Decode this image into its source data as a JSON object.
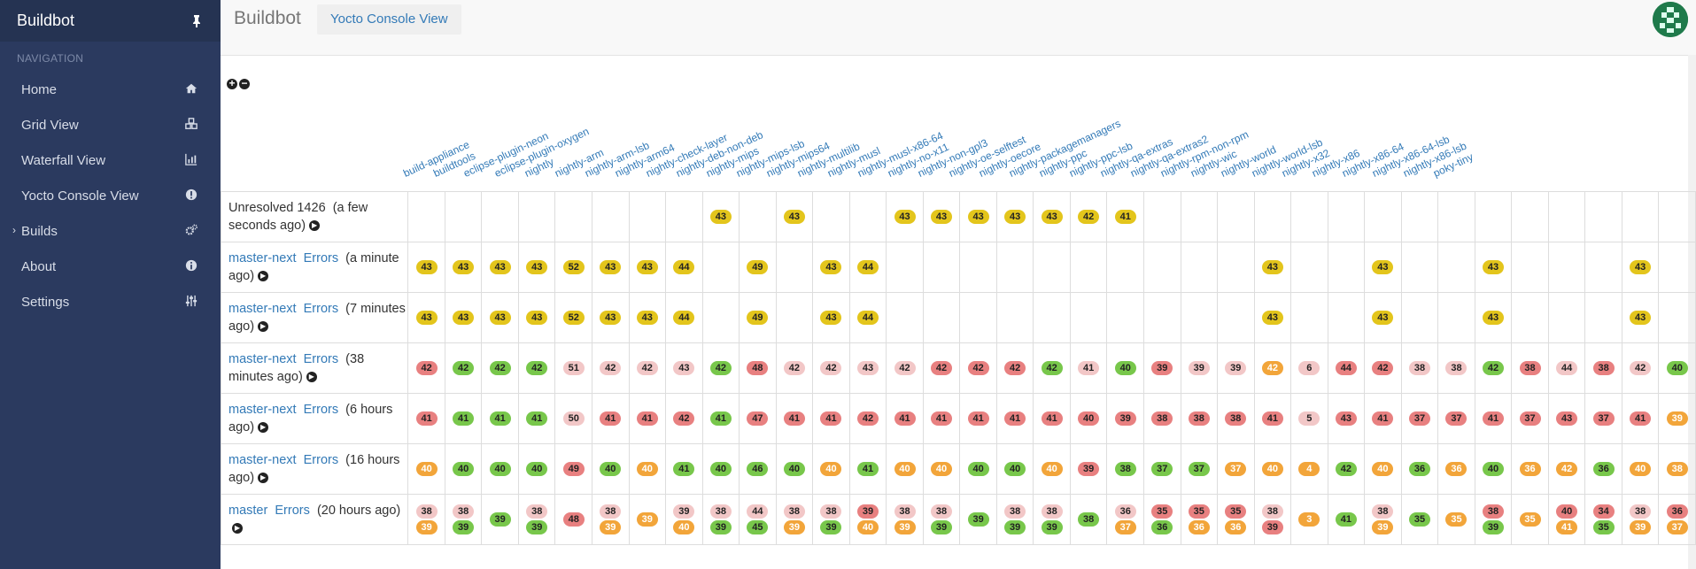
{
  "sidebar": {
    "brand": "Buildbot",
    "nav_header": "NAVIGATION",
    "items": [
      {
        "label": "Home",
        "icon": "home-icon"
      },
      {
        "label": "Grid View",
        "icon": "cubes-icon"
      },
      {
        "label": "Waterfall View",
        "icon": "bar-chart-icon"
      },
      {
        "label": "Yocto Console View",
        "icon": "exclamation-circle-icon"
      },
      {
        "label": "Builds",
        "icon": "cogs-icon",
        "expandable": true
      },
      {
        "label": "About",
        "icon": "info-circle-icon"
      },
      {
        "label": "Settings",
        "icon": "sliders-icon"
      }
    ]
  },
  "topbar": {
    "brand": "Buildbot",
    "active_tab": "Yocto Console View"
  },
  "builders": [
    "build-appliance",
    "buildtools",
    "eclipse-plugin-neon",
    "eclipse-plugin-oxygen",
    "nightly",
    "nightly-arm",
    "nightly-arm-lsb",
    "nightly-arm64",
    "nightly-check-layer",
    "nightly-deb-non-deb",
    "nightly-mips",
    "nightly-mips-lsb",
    "nightly-mips64",
    "nightly-multilib",
    "nightly-musl",
    "nightly-musl-x86-64",
    "nightly-no-x11",
    "nightly-non-gpl3",
    "nightly-oe-selftest",
    "nightly-oecore",
    "nightly-packagemanagers",
    "nightly-ppc",
    "nightly-ppc-lsb",
    "nightly-qa-extras",
    "nightly-qa-extras2",
    "nightly-rpm-non-rpm",
    "nightly-wic",
    "nightly-world",
    "nightly-world-lsb",
    "nightly-x32",
    "nightly-x86",
    "nightly-x86-64",
    "nightly-x86-64-lsb",
    "nightly-x86-lsb",
    "poky-tiny"
  ],
  "colors": {
    "pending": "#e3c51c",
    "failure": "#e88080",
    "warning_light": "#f2c7c7",
    "success": "#78c74b",
    "warnings": "#f2a53a"
  },
  "rows": [
    {
      "title": "Unresolved 1426",
      "branch": "",
      "errors": "",
      "when": "(a few seconds ago)",
      "cells": [
        [],
        [],
        [],
        [],
        [],
        [],
        [],
        [],
        [
          [
            "43",
            "y"
          ]
        ],
        [],
        [
          [
            "43",
            "y"
          ]
        ],
        [],
        [],
        [
          [
            "43",
            "y"
          ]
        ],
        [
          [
            "43",
            "y"
          ]
        ],
        [
          [
            "43",
            "y"
          ]
        ],
        [
          [
            "43",
            "y"
          ]
        ],
        [
          [
            "43",
            "y"
          ]
        ],
        [
          [
            "42",
            "y"
          ]
        ],
        [
          [
            "41",
            "y"
          ]
        ],
        [],
        [],
        [],
        [],
        [],
        [],
        [],
        [],
        [],
        [],
        [],
        [],
        [],
        [],
        []
      ]
    },
    {
      "title": "",
      "branch": "master-next",
      "errors": "Errors",
      "when": "(a minute ago)",
      "cells": [
        [
          [
            "43",
            "y"
          ]
        ],
        [
          [
            "43",
            "y"
          ]
        ],
        [
          [
            "43",
            "y"
          ]
        ],
        [
          [
            "43",
            "y"
          ]
        ],
        [
          [
            "52",
            "y"
          ]
        ],
        [
          [
            "43",
            "y"
          ]
        ],
        [
          [
            "43",
            "y"
          ]
        ],
        [
          [
            "44",
            "y"
          ]
        ],
        [],
        [
          [
            "49",
            "y"
          ]
        ],
        [],
        [
          [
            "43",
            "y"
          ]
        ],
        [
          [
            "44",
            "y"
          ]
        ],
        [],
        [],
        [],
        [],
        [],
        [],
        [],
        [],
        [],
        [],
        [
          [
            "43",
            "y"
          ]
        ],
        [],
        [],
        [
          [
            "43",
            "y"
          ]
        ],
        [],
        [],
        [
          [
            "43",
            "y"
          ]
        ],
        [],
        [],
        [],
        [
          [
            "43",
            "y"
          ]
        ],
        []
      ]
    },
    {
      "title": "",
      "branch": "master-next",
      "errors": "Errors",
      "when": "(7 minutes ago)",
      "cells": [
        [
          [
            "43",
            "y"
          ]
        ],
        [
          [
            "43",
            "y"
          ]
        ],
        [
          [
            "43",
            "y"
          ]
        ],
        [
          [
            "43",
            "y"
          ]
        ],
        [
          [
            "52",
            "y"
          ]
        ],
        [
          [
            "43",
            "y"
          ]
        ],
        [
          [
            "43",
            "y"
          ]
        ],
        [
          [
            "44",
            "y"
          ]
        ],
        [],
        [
          [
            "49",
            "y"
          ]
        ],
        [],
        [
          [
            "43",
            "y"
          ]
        ],
        [
          [
            "44",
            "y"
          ]
        ],
        [],
        [],
        [],
        [],
        [],
        [],
        [],
        [],
        [],
        [],
        [
          [
            "43",
            "y"
          ]
        ],
        [],
        [],
        [
          [
            "43",
            "y"
          ]
        ],
        [],
        [],
        [
          [
            "43",
            "y"
          ]
        ],
        [],
        [],
        [],
        [
          [
            "43",
            "y"
          ]
        ],
        []
      ]
    },
    {
      "title": "",
      "branch": "master-next",
      "errors": "Errors",
      "when": "(38 minutes ago)",
      "cells": [
        [
          [
            "42",
            "r"
          ]
        ],
        [
          [
            "42",
            "g"
          ]
        ],
        [
          [
            "42",
            "g"
          ]
        ],
        [
          [
            "42",
            "g"
          ]
        ],
        [
          [
            "51",
            "p"
          ]
        ],
        [
          [
            "42",
            "p"
          ]
        ],
        [
          [
            "42",
            "p"
          ]
        ],
        [
          [
            "43",
            "p"
          ]
        ],
        [
          [
            "42",
            "g"
          ]
        ],
        [
          [
            "48",
            "r"
          ]
        ],
        [
          [
            "42",
            "p"
          ]
        ],
        [
          [
            "42",
            "p"
          ]
        ],
        [
          [
            "43",
            "p"
          ]
        ],
        [
          [
            "42",
            "p"
          ]
        ],
        [
          [
            "42",
            "r"
          ]
        ],
        [
          [
            "42",
            "r"
          ]
        ],
        [
          [
            "42",
            "r"
          ]
        ],
        [
          [
            "42",
            "g"
          ]
        ],
        [
          [
            "41",
            "p"
          ]
        ],
        [
          [
            "40",
            "g"
          ]
        ],
        [
          [
            "39",
            "r"
          ]
        ],
        [
          [
            "39",
            "p"
          ]
        ],
        [
          [
            "39",
            "p"
          ]
        ],
        [
          [
            "42",
            "o"
          ]
        ],
        [
          [
            "6",
            "p"
          ]
        ],
        [
          [
            "44",
            "r"
          ]
        ],
        [
          [
            "42",
            "r"
          ]
        ],
        [
          [
            "38",
            "p"
          ]
        ],
        [
          [
            "38",
            "p"
          ]
        ],
        [
          [
            "42",
            "g"
          ]
        ],
        [
          [
            "38",
            "r"
          ]
        ],
        [
          [
            "44",
            "p"
          ]
        ],
        [
          [
            "38",
            "r"
          ]
        ],
        [
          [
            "42",
            "p"
          ]
        ],
        [
          [
            "40",
            "g"
          ]
        ]
      ]
    },
    {
      "title": "",
      "branch": "master-next",
      "errors": "Errors",
      "when": "(6 hours ago)",
      "cells": [
        [
          [
            "41",
            "r"
          ]
        ],
        [
          [
            "41",
            "g"
          ]
        ],
        [
          [
            "41",
            "g"
          ]
        ],
        [
          [
            "41",
            "g"
          ]
        ],
        [
          [
            "50",
            "p"
          ]
        ],
        [
          [
            "41",
            "r"
          ]
        ],
        [
          [
            "41",
            "r"
          ]
        ],
        [
          [
            "42",
            "r"
          ]
        ],
        [
          [
            "41",
            "g"
          ]
        ],
        [
          [
            "47",
            "r"
          ]
        ],
        [
          [
            "41",
            "r"
          ]
        ],
        [
          [
            "41",
            "r"
          ]
        ],
        [
          [
            "42",
            "r"
          ]
        ],
        [
          [
            "41",
            "r"
          ]
        ],
        [
          [
            "41",
            "r"
          ]
        ],
        [
          [
            "41",
            "r"
          ]
        ],
        [
          [
            "41",
            "r"
          ]
        ],
        [
          [
            "41",
            "r"
          ]
        ],
        [
          [
            "40",
            "r"
          ]
        ],
        [
          [
            "39",
            "r"
          ]
        ],
        [
          [
            "38",
            "r"
          ]
        ],
        [
          [
            "38",
            "r"
          ]
        ],
        [
          [
            "38",
            "r"
          ]
        ],
        [
          [
            "41",
            "r"
          ]
        ],
        [
          [
            "5",
            "p"
          ]
        ],
        [
          [
            "43",
            "r"
          ]
        ],
        [
          [
            "41",
            "r"
          ]
        ],
        [
          [
            "37",
            "r"
          ]
        ],
        [
          [
            "37",
            "r"
          ]
        ],
        [
          [
            "41",
            "r"
          ]
        ],
        [
          [
            "37",
            "r"
          ]
        ],
        [
          [
            "43",
            "r"
          ]
        ],
        [
          [
            "37",
            "r"
          ]
        ],
        [
          [
            "41",
            "r"
          ]
        ],
        [
          [
            "39",
            "o"
          ]
        ]
      ]
    },
    {
      "title": "",
      "branch": "master-next",
      "errors": "Errors",
      "when": "(16 hours ago)",
      "cells": [
        [
          [
            "40",
            "o"
          ]
        ],
        [
          [
            "40",
            "g"
          ]
        ],
        [
          [
            "40",
            "g"
          ]
        ],
        [
          [
            "40",
            "g"
          ]
        ],
        [
          [
            "49",
            "r"
          ]
        ],
        [
          [
            "40",
            "g"
          ]
        ],
        [
          [
            "40",
            "o"
          ]
        ],
        [
          [
            "41",
            "g"
          ]
        ],
        [
          [
            "40",
            "g"
          ]
        ],
        [
          [
            "46",
            "g"
          ]
        ],
        [
          [
            "40",
            "g"
          ]
        ],
        [
          [
            "40",
            "o"
          ]
        ],
        [
          [
            "41",
            "g"
          ]
        ],
        [
          [
            "40",
            "o"
          ]
        ],
        [
          [
            "40",
            "o"
          ]
        ],
        [
          [
            "40",
            "g"
          ]
        ],
        [
          [
            "40",
            "g"
          ]
        ],
        [
          [
            "40",
            "o"
          ]
        ],
        [
          [
            "39",
            "r"
          ]
        ],
        [
          [
            "38",
            "g"
          ]
        ],
        [
          [
            "37",
            "g"
          ]
        ],
        [
          [
            "37",
            "g"
          ]
        ],
        [
          [
            "37",
            "o"
          ]
        ],
        [
          [
            "40",
            "o"
          ]
        ],
        [
          [
            "4",
            "o"
          ]
        ],
        [
          [
            "42",
            "g"
          ]
        ],
        [
          [
            "40",
            "o"
          ]
        ],
        [
          [
            "36",
            "g"
          ]
        ],
        [
          [
            "36",
            "o"
          ]
        ],
        [
          [
            "40",
            "g"
          ]
        ],
        [
          [
            "36",
            "o"
          ]
        ],
        [
          [
            "42",
            "o"
          ]
        ],
        [
          [
            "36",
            "g"
          ]
        ],
        [
          [
            "40",
            "o"
          ]
        ],
        [
          [
            "38",
            "o"
          ]
        ]
      ]
    },
    {
      "title": "",
      "branch": "master",
      "errors": "Errors",
      "when": "(20 hours ago)",
      "cells": [
        [
          [
            "38",
            "p"
          ],
          [
            "39",
            "o"
          ]
        ],
        [
          [
            "38",
            "p"
          ],
          [
            "39",
            "g"
          ]
        ],
        [
          [
            "39",
            "g"
          ]
        ],
        [
          [
            "38",
            "p"
          ],
          [
            "39",
            "g"
          ]
        ],
        [
          [
            "48",
            "r"
          ]
        ],
        [
          [
            "38",
            "p"
          ],
          [
            "39",
            "o"
          ]
        ],
        [
          [
            "39",
            "o"
          ]
        ],
        [
          [
            "39",
            "p"
          ],
          [
            "40",
            "o"
          ]
        ],
        [
          [
            "38",
            "p"
          ],
          [
            "39",
            "g"
          ]
        ],
        [
          [
            "44",
            "p"
          ],
          [
            "45",
            "g"
          ]
        ],
        [
          [
            "38",
            "p"
          ],
          [
            "39",
            "o"
          ]
        ],
        [
          [
            "38",
            "p"
          ],
          [
            "39",
            "g"
          ]
        ],
        [
          [
            "39",
            "r"
          ],
          [
            "40",
            "o"
          ]
        ],
        [
          [
            "38",
            "p"
          ],
          [
            "39",
            "o"
          ]
        ],
        [
          [
            "38",
            "p"
          ],
          [
            "39",
            "g"
          ]
        ],
        [
          [
            "39",
            "g"
          ]
        ],
        [
          [
            "38",
            "p"
          ],
          [
            "39",
            "g"
          ]
        ],
        [
          [
            "38",
            "p"
          ],
          [
            "39",
            "g"
          ]
        ],
        [
          [
            "38",
            "g"
          ]
        ],
        [
          [
            "36",
            "p"
          ],
          [
            "37",
            "o"
          ]
        ],
        [
          [
            "35",
            "r"
          ],
          [
            "36",
            "g"
          ]
        ],
        [
          [
            "35",
            "r"
          ],
          [
            "36",
            "o"
          ]
        ],
        [
          [
            "35",
            "r"
          ],
          [
            "36",
            "o"
          ]
        ],
        [
          [
            "38",
            "p"
          ],
          [
            "39",
            "r"
          ]
        ],
        [
          [
            "3",
            "o"
          ]
        ],
        [
          [
            "41",
            "g"
          ]
        ],
        [
          [
            "38",
            "p"
          ],
          [
            "39",
            "o"
          ]
        ],
        [
          [
            "35",
            "g"
          ]
        ],
        [
          [
            "35",
            "o"
          ]
        ],
        [
          [
            "38",
            "r"
          ],
          [
            "39",
            "g"
          ]
        ],
        [
          [
            "35",
            "o"
          ]
        ],
        [
          [
            "40",
            "r"
          ],
          [
            "41",
            "o"
          ]
        ],
        [
          [
            "34",
            "r"
          ],
          [
            "35",
            "g"
          ]
        ],
        [
          [
            "38",
            "p"
          ],
          [
            "39",
            "o"
          ]
        ],
        [
          [
            "36",
            "r"
          ],
          [
            "37",
            "o"
          ]
        ]
      ]
    }
  ]
}
